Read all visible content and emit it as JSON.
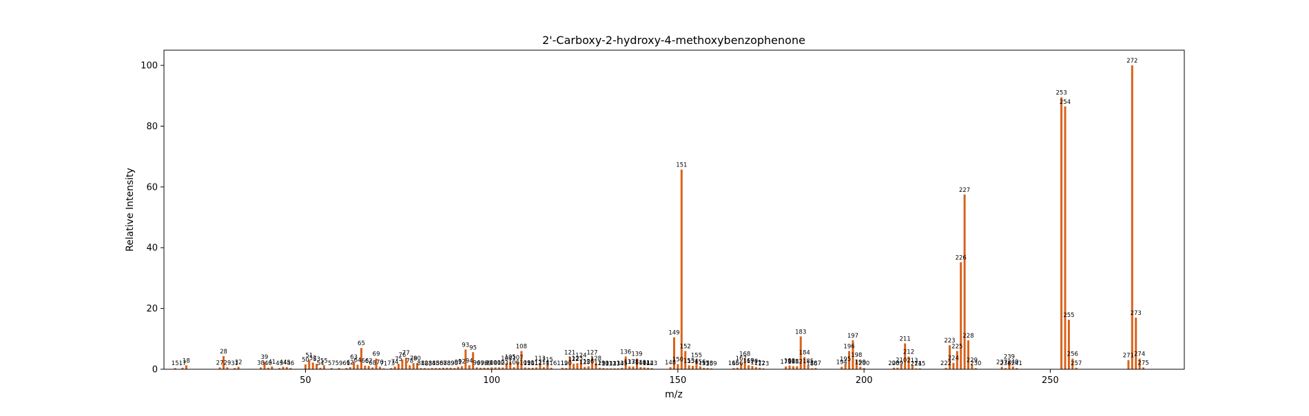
{
  "colors": {
    "bar": "#d9621a",
    "axis": "#000000",
    "background": "#ffffff"
  },
  "chart_data": {
    "type": "bar",
    "title": "2'-Carboxy-2-hydroxy-4-methoxybenzophenone",
    "xlabel": "m/z",
    "ylabel": "Relative Intensity",
    "xlim": [
      12,
      286
    ],
    "ylim": [
      0,
      105
    ],
    "xticks": [
      50,
      100,
      150,
      200,
      250
    ],
    "yticks": [
      0,
      20,
      40,
      60,
      80,
      100
    ],
    "grid": false,
    "peaks": [
      {
        "x": 15,
        "y": 0.4
      },
      {
        "x": 17,
        "y": 0.5
      },
      {
        "x": 18,
        "y": 1.3
      },
      {
        "x": 27,
        "y": 0.6
      },
      {
        "x": 28,
        "y": 4.3
      },
      {
        "x": 29,
        "y": 0.6
      },
      {
        "x": 31,
        "y": 0.4
      },
      {
        "x": 32,
        "y": 0.8
      },
      {
        "x": 38,
        "y": 0.6
      },
      {
        "x": 39,
        "y": 2.5
      },
      {
        "x": 40,
        "y": 0.5
      },
      {
        "x": 41,
        "y": 0.9
      },
      {
        "x": 43,
        "y": 0.4
      },
      {
        "x": 44,
        "y": 0.8
      },
      {
        "x": 45,
        "y": 0.7
      },
      {
        "x": 46,
        "y": 0.4
      },
      {
        "x": 50,
        "y": 1.6
      },
      {
        "x": 51,
        "y": 3.0
      },
      {
        "x": 52,
        "y": 2.2
      },
      {
        "x": 53,
        "y": 1.8
      },
      {
        "x": 54,
        "y": 0.5
      },
      {
        "x": 55,
        "y": 1.3
      },
      {
        "x": 57,
        "y": 0.4
      },
      {
        "x": 59,
        "y": 0.4
      },
      {
        "x": 61,
        "y": 0.4
      },
      {
        "x": 62,
        "y": 0.7
      },
      {
        "x": 63,
        "y": 2.5
      },
      {
        "x": 64,
        "y": 1.5
      },
      {
        "x": 65,
        "y": 7.0
      },
      {
        "x": 66,
        "y": 1.2
      },
      {
        "x": 67,
        "y": 1.1
      },
      {
        "x": 68,
        "y": 0.6
      },
      {
        "x": 69,
        "y": 3.5
      },
      {
        "x": 70,
        "y": 0.8
      },
      {
        "x": 71,
        "y": 0.3
      },
      {
        "x": 73,
        "y": 0.4
      },
      {
        "x": 74,
        "y": 0.9
      },
      {
        "x": 75,
        "y": 1.8
      },
      {
        "x": 76,
        "y": 3.2
      },
      {
        "x": 77,
        "y": 3.8
      },
      {
        "x": 78,
        "y": 1.3
      },
      {
        "x": 79,
        "y": 2.0
      },
      {
        "x": 80,
        "y": 2.0
      },
      {
        "x": 81,
        "y": 0.4
      },
      {
        "x": 82,
        "y": 0.4
      },
      {
        "x": 83,
        "y": 0.3
      },
      {
        "x": 84,
        "y": 0.4
      },
      {
        "x": 85,
        "y": 0.4
      },
      {
        "x": 86,
        "y": 0.4
      },
      {
        "x": 87,
        "y": 0.5
      },
      {
        "x": 88,
        "y": 0.5
      },
      {
        "x": 89,
        "y": 0.5
      },
      {
        "x": 90,
        "y": 0.4
      },
      {
        "x": 91,
        "y": 0.8
      },
      {
        "x": 92,
        "y": 1.0
      },
      {
        "x": 93,
        "y": 6.5
      },
      {
        "x": 94,
        "y": 1.3
      },
      {
        "x": 95,
        "y": 5.6
      },
      {
        "x": 96,
        "y": 0.6
      },
      {
        "x": 97,
        "y": 0.5
      },
      {
        "x": 98,
        "y": 0.5
      },
      {
        "x": 99,
        "y": 0.5
      },
      {
        "x": 100,
        "y": 0.6
      },
      {
        "x": 101,
        "y": 0.6
      },
      {
        "x": 102,
        "y": 0.6
      },
      {
        "x": 103,
        "y": 0.6
      },
      {
        "x": 104,
        "y": 2.0
      },
      {
        "x": 105,
        "y": 2.5
      },
      {
        "x": 106,
        "y": 0.7
      },
      {
        "x": 107,
        "y": 2.3
      },
      {
        "x": 108,
        "y": 6.0
      },
      {
        "x": 109,
        "y": 0.6
      },
      {
        "x": 110,
        "y": 0.5
      },
      {
        "x": 111,
        "y": 0.5
      },
      {
        "x": 112,
        "y": 0.6
      },
      {
        "x": 113,
        "y": 2.0
      },
      {
        "x": 114,
        "y": 0.7
      },
      {
        "x": 115,
        "y": 1.6
      },
      {
        "x": 116,
        "y": 0.5
      },
      {
        "x": 119,
        "y": 0.5
      },
      {
        "x": 120,
        "y": 0.4
      },
      {
        "x": 121,
        "y": 4.0
      },
      {
        "x": 122,
        "y": 1.8
      },
      {
        "x": 123,
        "y": 2.0
      },
      {
        "x": 124,
        "y": 3.0
      },
      {
        "x": 125,
        "y": 0.8
      },
      {
        "x": 126,
        "y": 1.0
      },
      {
        "x": 127,
        "y": 4.0
      },
      {
        "x": 128,
        "y": 2.0
      },
      {
        "x": 129,
        "y": 0.5
      },
      {
        "x": 130,
        "y": 0.4
      },
      {
        "x": 131,
        "y": 0.3
      },
      {
        "x": 132,
        "y": 0.3
      },
      {
        "x": 133,
        "y": 0.3
      },
      {
        "x": 134,
        "y": 0.3
      },
      {
        "x": 135,
        "y": 0.5
      },
      {
        "x": 136,
        "y": 4.2
      },
      {
        "x": 137,
        "y": 0.9
      },
      {
        "x": 138,
        "y": 0.9
      },
      {
        "x": 139,
        "y": 3.5
      },
      {
        "x": 140,
        "y": 0.7
      },
      {
        "x": 141,
        "y": 0.6
      },
      {
        "x": 142,
        "y": 0.5
      },
      {
        "x": 143,
        "y": 0.4
      },
      {
        "x": 148,
        "y": 0.7
      },
      {
        "x": 149,
        "y": 10.5
      },
      {
        "x": 150,
        "y": 1.7
      },
      {
        "x": 151,
        "y": 65.7
      },
      {
        "x": 152,
        "y": 6.0
      },
      {
        "x": 153,
        "y": 1.3
      },
      {
        "x": 154,
        "y": 1.1
      },
      {
        "x": 155,
        "y": 3.0
      },
      {
        "x": 156,
        "y": 0.9
      },
      {
        "x": 157,
        "y": 0.5
      },
      {
        "x": 158,
        "y": 0.4
      },
      {
        "x": 159,
        "y": 0.3
      },
      {
        "x": 165,
        "y": 0.4
      },
      {
        "x": 166,
        "y": 0.5
      },
      {
        "x": 167,
        "y": 2.0
      },
      {
        "x": 168,
        "y": 3.5
      },
      {
        "x": 169,
        "y": 1.3
      },
      {
        "x": 170,
        "y": 1.1
      },
      {
        "x": 171,
        "y": 0.7
      },
      {
        "x": 172,
        "y": 0.5
      },
      {
        "x": 173,
        "y": 0.3
      },
      {
        "x": 179,
        "y": 0.9
      },
      {
        "x": 180,
        "y": 1.2
      },
      {
        "x": 181,
        "y": 1.0
      },
      {
        "x": 182,
        "y": 1.0
      },
      {
        "x": 183,
        "y": 10.8
      },
      {
        "x": 184,
        "y": 4.0
      },
      {
        "x": 185,
        "y": 1.1
      },
      {
        "x": 186,
        "y": 0.3
      },
      {
        "x": 187,
        "y": 0.4
      },
      {
        "x": 194,
        "y": 0.8
      },
      {
        "x": 195,
        "y": 1.8
      },
      {
        "x": 196,
        "y": 6.0
      },
      {
        "x": 197,
        "y": 9.5
      },
      {
        "x": 198,
        "y": 3.2
      },
      {
        "x": 199,
        "y": 0.8
      },
      {
        "x": 200,
        "y": 0.4
      },
      {
        "x": 208,
        "y": 0.5
      },
      {
        "x": 209,
        "y": 0.5
      },
      {
        "x": 210,
        "y": 1.5
      },
      {
        "x": 211,
        "y": 8.5
      },
      {
        "x": 212,
        "y": 4.2
      },
      {
        "x": 213,
        "y": 1.4
      },
      {
        "x": 214,
        "y": 0.3
      },
      {
        "x": 215,
        "y": 0.3
      },
      {
        "x": 222,
        "y": 0.5
      },
      {
        "x": 223,
        "y": 7.9
      },
      {
        "x": 224,
        "y": 2.1
      },
      {
        "x": 225,
        "y": 6.0
      },
      {
        "x": 226,
        "y": 35.2
      },
      {
        "x": 227,
        "y": 57.5
      },
      {
        "x": 228,
        "y": 9.5
      },
      {
        "x": 229,
        "y": 1.5
      },
      {
        "x": 230,
        "y": 0.4
      },
      {
        "x": 237,
        "y": 0.8
      },
      {
        "x": 238,
        "y": 0.4
      },
      {
        "x": 239,
        "y": 2.6
      },
      {
        "x": 240,
        "y": 0.9
      },
      {
        "x": 241,
        "y": 0.4
      },
      {
        "x": 253,
        "y": 89.5
      },
      {
        "x": 254,
        "y": 86.5
      },
      {
        "x": 255,
        "y": 16.3
      },
      {
        "x": 256,
        "y": 3.5
      },
      {
        "x": 257,
        "y": 0.5
      },
      {
        "x": 271,
        "y": 3.0
      },
      {
        "x": 272,
        "y": 100.0
      },
      {
        "x": 273,
        "y": 17.0
      },
      {
        "x": 274,
        "y": 3.5
      },
      {
        "x": 275,
        "y": 0.6
      }
    ]
  }
}
